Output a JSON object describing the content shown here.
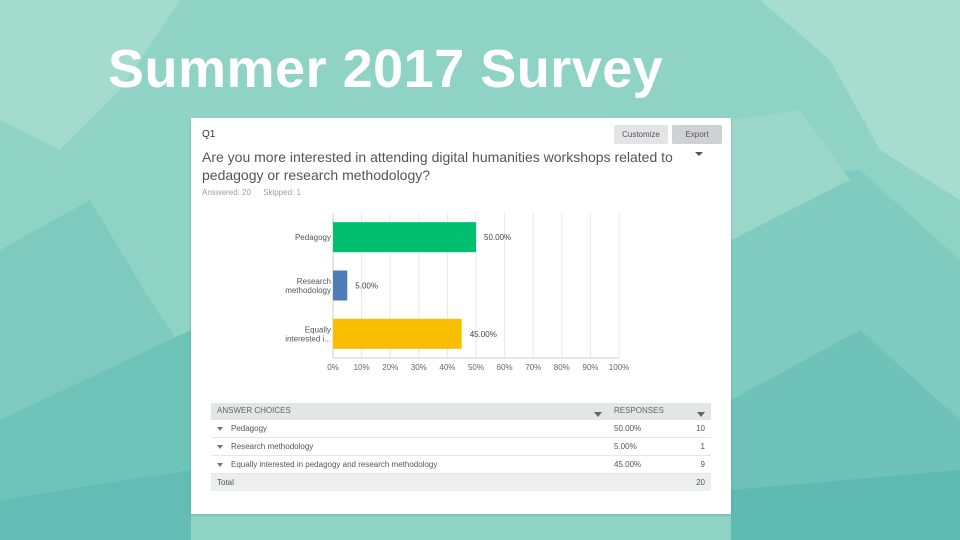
{
  "slide": {
    "title": "Summer 2017 Survey"
  },
  "question": {
    "number": "Q1",
    "text": "Are you more interested in attending digital humanities workshops related to pedagogy or research methodology?",
    "answered": "Answered: 20",
    "skipped": "Skipped: 1"
  },
  "toolbar": {
    "customize_label": "Customize",
    "export_label": "Export"
  },
  "colors": {
    "pedagogy": "#00bf6f",
    "research": "#507cb6",
    "equally": "#f9be00",
    "background": "#8fd3c5"
  },
  "chart_data": {
    "type": "bar",
    "orientation": "horizontal",
    "categories": [
      "Pedagogy",
      "Research methodology",
      "Equally interested i..."
    ],
    "category_label_lines": [
      [
        "Pedagogy"
      ],
      [
        "Research",
        "methodology"
      ],
      [
        "Equally",
        "interested i..."
      ]
    ],
    "values": [
      50.0,
      5.0,
      45.0
    ],
    "value_labels": [
      "50.00%",
      "5.00%",
      "45.00%"
    ],
    "xlim": [
      0,
      100
    ],
    "x_ticks": [
      "0%",
      "10%",
      "20%",
      "30%",
      "40%",
      "50%",
      "60%",
      "70%",
      "80%",
      "90%",
      "100%"
    ],
    "grid": true,
    "legend": "none"
  },
  "table": {
    "headers": {
      "answer_choices": "ANSWER CHOICES",
      "responses": "RESPONSES"
    },
    "rows": [
      {
        "choice": "Pedagogy",
        "percent": "50.00%",
        "count": "10"
      },
      {
        "choice": "Research methodology",
        "percent": "5.00%",
        "count": "1"
      },
      {
        "choice": "Equally interested in pedagogy and research methodology",
        "percent": "45.00%",
        "count": "9"
      }
    ],
    "total": {
      "label": "Total",
      "count": "20"
    }
  }
}
